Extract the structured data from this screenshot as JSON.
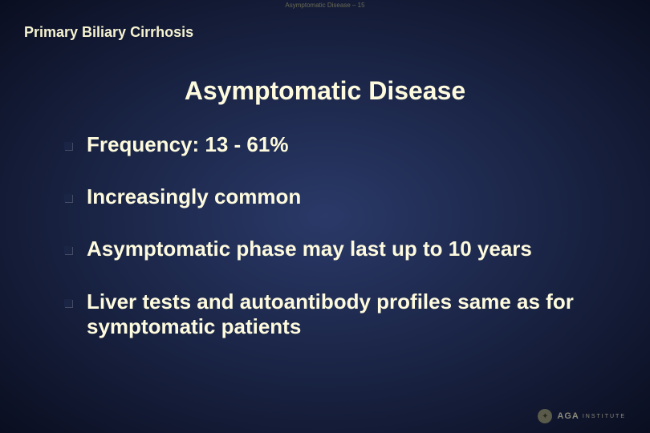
{
  "top_label": "Asymptomatic Disease – 15",
  "header": "Primary Biliary Cirrhosis",
  "title": "Asymptomatic Disease",
  "bullets": [
    "Frequency: 13 - 61%",
    "Increasingly common",
    "Asymptomatic phase may last up to 10 years",
    "Liver tests and autoantibody profiles same as for symptomatic patients"
  ],
  "footer": {
    "org": "AGA",
    "sub": "INSTITUTE"
  },
  "colors": {
    "background_center": "#2a3968",
    "background_mid": "#1a2445",
    "background_edge": "#0a0e20",
    "text": "#fdfadd",
    "bullet_marker": "#1a2445"
  },
  "typography": {
    "header_fontsize": 18,
    "title_fontsize": 32,
    "bullet_fontsize": 26,
    "font_weight": "bold",
    "font_family": "Arial"
  }
}
